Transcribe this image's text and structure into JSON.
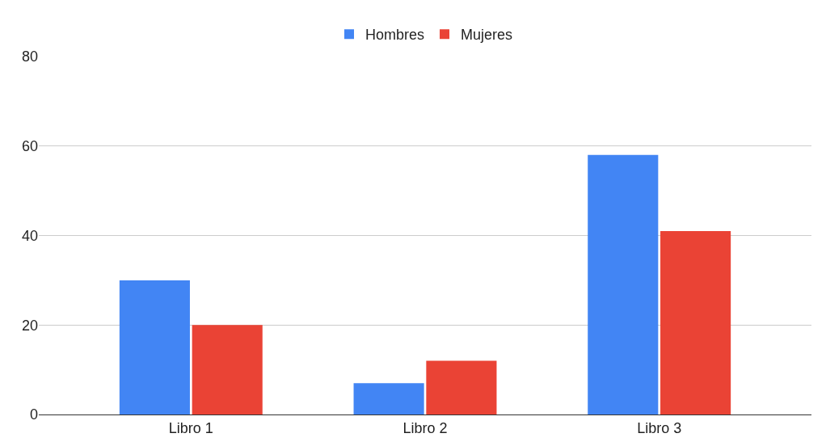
{
  "chart_data": {
    "type": "bar",
    "categories": [
      "Libro 1",
      "Libro 2",
      "Libro 3"
    ],
    "series": [
      {
        "name": "Hombres",
        "color": "#4285f4",
        "values": [
          30,
          7,
          58
        ]
      },
      {
        "name": "Mujeres",
        "color": "#ea4335",
        "values": [
          20,
          12,
          41
        ]
      }
    ],
    "ylim": [
      0,
      80
    ],
    "yticks": [
      0,
      20,
      40,
      60,
      80
    ],
    "grid": "y",
    "legend": "top"
  }
}
